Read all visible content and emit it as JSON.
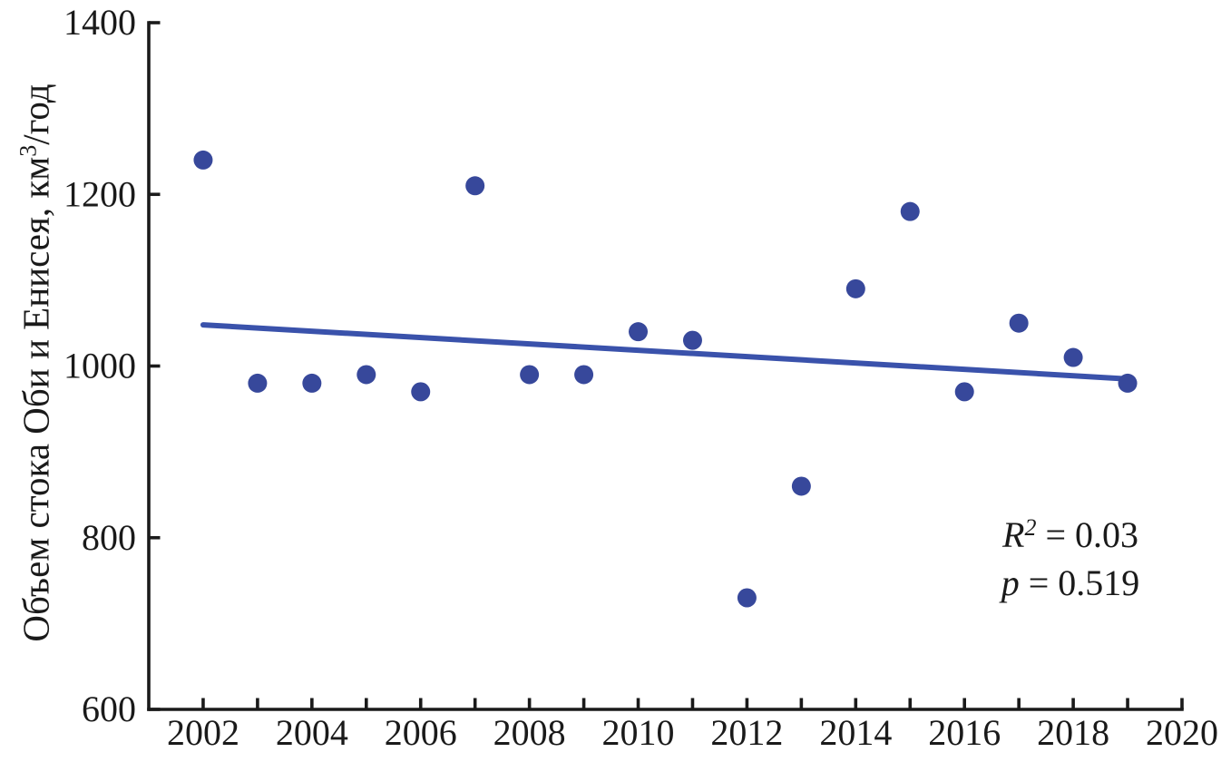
{
  "axes": {
    "y_label_main": "Объем стока Оби и Енисея, км",
    "y_label_sup": "3",
    "y_label_rest": "/год"
  },
  "stats": {
    "r_symbol": "R",
    "r_exponent": "2",
    "r_value": " = 0.03",
    "p_symbol": "p",
    "p_value": " = 0.519"
  },
  "chart_data": {
    "type": "scatter",
    "title": "",
    "xlabel": "",
    "ylabel": "Объем стока Оби и Енисея, км³/год",
    "x": [
      2002,
      2003,
      2004,
      2005,
      2006,
      2007,
      2008,
      2009,
      2010,
      2011,
      2012,
      2013,
      2014,
      2015,
      2016,
      2017,
      2018,
      2019
    ],
    "y": [
      1240,
      980,
      980,
      990,
      970,
      1210,
      990,
      990,
      1040,
      1030,
      730,
      860,
      1090,
      1180,
      970,
      1050,
      1010,
      980
    ],
    "trendline": {
      "x_start": 2002,
      "y_start": 1048,
      "x_end": 2019,
      "y_end": 985
    },
    "annotations": [
      "R² = 0.03",
      "p = 0.519"
    ],
    "xlim": [
      2001,
      2020
    ],
    "ylim": [
      600,
      1400
    ],
    "x_tick_labels": [
      "2002",
      "2004",
      "2006",
      "2008",
      "2010",
      "2012",
      "2014",
      "2016",
      "2018",
      "2020"
    ],
    "x_minor_tick_step": 1,
    "y_tick_labels": [
      "600",
      "800",
      "1000",
      "1200",
      "1400"
    ],
    "grid": false,
    "legend": false,
    "tick_direction": "in",
    "marker_color": "#37489B",
    "trend_color": "#3A52AB",
    "axis_color": "#1a1a1a"
  }
}
